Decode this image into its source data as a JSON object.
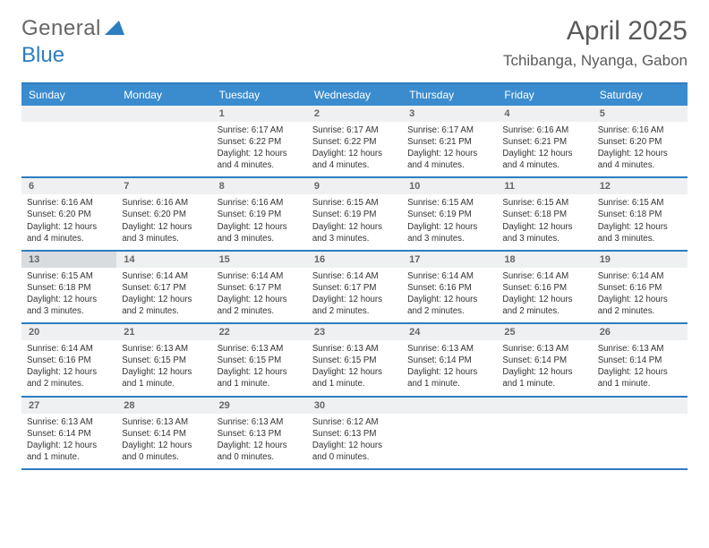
{
  "logo": {
    "general": "General",
    "blue": "Blue"
  },
  "header": {
    "title": "April 2025",
    "location": "Tchibanga, Nyanga, Gabon"
  },
  "colors": {
    "brand": "#2d7dc1",
    "headerbar": "#3a8ccf",
    "numbar": "#eef0f1",
    "text": "#333"
  },
  "weekday_labels": [
    "Sunday",
    "Monday",
    "Tuesday",
    "Wednesday",
    "Thursday",
    "Friday",
    "Saturday"
  ],
  "weeks": [
    [
      {
        "num": "",
        "empty": true
      },
      {
        "num": "",
        "empty": true
      },
      {
        "num": "1",
        "sunrise": "Sunrise: 6:17 AM",
        "sunset": "Sunset: 6:22 PM",
        "daylight": "Daylight: 12 hours and 4 minutes."
      },
      {
        "num": "2",
        "sunrise": "Sunrise: 6:17 AM",
        "sunset": "Sunset: 6:22 PM",
        "daylight": "Daylight: 12 hours and 4 minutes."
      },
      {
        "num": "3",
        "sunrise": "Sunrise: 6:17 AM",
        "sunset": "Sunset: 6:21 PM",
        "daylight": "Daylight: 12 hours and 4 minutes."
      },
      {
        "num": "4",
        "sunrise": "Sunrise: 6:16 AM",
        "sunset": "Sunset: 6:21 PM",
        "daylight": "Daylight: 12 hours and 4 minutes."
      },
      {
        "num": "5",
        "sunrise": "Sunrise: 6:16 AM",
        "sunset": "Sunset: 6:20 PM",
        "daylight": "Daylight: 12 hours and 4 minutes."
      }
    ],
    [
      {
        "num": "6",
        "sunrise": "Sunrise: 6:16 AM",
        "sunset": "Sunset: 6:20 PM",
        "daylight": "Daylight: 12 hours and 4 minutes."
      },
      {
        "num": "7",
        "sunrise": "Sunrise: 6:16 AM",
        "sunset": "Sunset: 6:20 PM",
        "daylight": "Daylight: 12 hours and 3 minutes."
      },
      {
        "num": "8",
        "sunrise": "Sunrise: 6:16 AM",
        "sunset": "Sunset: 6:19 PM",
        "daylight": "Daylight: 12 hours and 3 minutes."
      },
      {
        "num": "9",
        "sunrise": "Sunrise: 6:15 AM",
        "sunset": "Sunset: 6:19 PM",
        "daylight": "Daylight: 12 hours and 3 minutes."
      },
      {
        "num": "10",
        "sunrise": "Sunrise: 6:15 AM",
        "sunset": "Sunset: 6:19 PM",
        "daylight": "Daylight: 12 hours and 3 minutes."
      },
      {
        "num": "11",
        "sunrise": "Sunrise: 6:15 AM",
        "sunset": "Sunset: 6:18 PM",
        "daylight": "Daylight: 12 hours and 3 minutes."
      },
      {
        "num": "12",
        "sunrise": "Sunrise: 6:15 AM",
        "sunset": "Sunset: 6:18 PM",
        "daylight": "Daylight: 12 hours and 3 minutes."
      }
    ],
    [
      {
        "num": "13",
        "hl": true,
        "sunrise": "Sunrise: 6:15 AM",
        "sunset": "Sunset: 6:18 PM",
        "daylight": "Daylight: 12 hours and 3 minutes."
      },
      {
        "num": "14",
        "sunrise": "Sunrise: 6:14 AM",
        "sunset": "Sunset: 6:17 PM",
        "daylight": "Daylight: 12 hours and 2 minutes."
      },
      {
        "num": "15",
        "sunrise": "Sunrise: 6:14 AM",
        "sunset": "Sunset: 6:17 PM",
        "daylight": "Daylight: 12 hours and 2 minutes."
      },
      {
        "num": "16",
        "sunrise": "Sunrise: 6:14 AM",
        "sunset": "Sunset: 6:17 PM",
        "daylight": "Daylight: 12 hours and 2 minutes."
      },
      {
        "num": "17",
        "sunrise": "Sunrise: 6:14 AM",
        "sunset": "Sunset: 6:16 PM",
        "daylight": "Daylight: 12 hours and 2 minutes."
      },
      {
        "num": "18",
        "sunrise": "Sunrise: 6:14 AM",
        "sunset": "Sunset: 6:16 PM",
        "daylight": "Daylight: 12 hours and 2 minutes."
      },
      {
        "num": "19",
        "sunrise": "Sunrise: 6:14 AM",
        "sunset": "Sunset: 6:16 PM",
        "daylight": "Daylight: 12 hours and 2 minutes."
      }
    ],
    [
      {
        "num": "20",
        "sunrise": "Sunrise: 6:14 AM",
        "sunset": "Sunset: 6:16 PM",
        "daylight": "Daylight: 12 hours and 2 minutes."
      },
      {
        "num": "21",
        "sunrise": "Sunrise: 6:13 AM",
        "sunset": "Sunset: 6:15 PM",
        "daylight": "Daylight: 12 hours and 1 minute."
      },
      {
        "num": "22",
        "sunrise": "Sunrise: 6:13 AM",
        "sunset": "Sunset: 6:15 PM",
        "daylight": "Daylight: 12 hours and 1 minute."
      },
      {
        "num": "23",
        "sunrise": "Sunrise: 6:13 AM",
        "sunset": "Sunset: 6:15 PM",
        "daylight": "Daylight: 12 hours and 1 minute."
      },
      {
        "num": "24",
        "sunrise": "Sunrise: 6:13 AM",
        "sunset": "Sunset: 6:14 PM",
        "daylight": "Daylight: 12 hours and 1 minute."
      },
      {
        "num": "25",
        "sunrise": "Sunrise: 6:13 AM",
        "sunset": "Sunset: 6:14 PM",
        "daylight": "Daylight: 12 hours and 1 minute."
      },
      {
        "num": "26",
        "sunrise": "Sunrise: 6:13 AM",
        "sunset": "Sunset: 6:14 PM",
        "daylight": "Daylight: 12 hours and 1 minute."
      }
    ],
    [
      {
        "num": "27",
        "sunrise": "Sunrise: 6:13 AM",
        "sunset": "Sunset: 6:14 PM",
        "daylight": "Daylight: 12 hours and 1 minute."
      },
      {
        "num": "28",
        "sunrise": "Sunrise: 6:13 AM",
        "sunset": "Sunset: 6:14 PM",
        "daylight": "Daylight: 12 hours and 0 minutes."
      },
      {
        "num": "29",
        "sunrise": "Sunrise: 6:13 AM",
        "sunset": "Sunset: 6:13 PM",
        "daylight": "Daylight: 12 hours and 0 minutes."
      },
      {
        "num": "30",
        "sunrise": "Sunrise: 6:12 AM",
        "sunset": "Sunset: 6:13 PM",
        "daylight": "Daylight: 12 hours and 0 minutes."
      },
      {
        "num": "",
        "empty": true
      },
      {
        "num": "",
        "empty": true
      },
      {
        "num": "",
        "empty": true
      }
    ]
  ]
}
